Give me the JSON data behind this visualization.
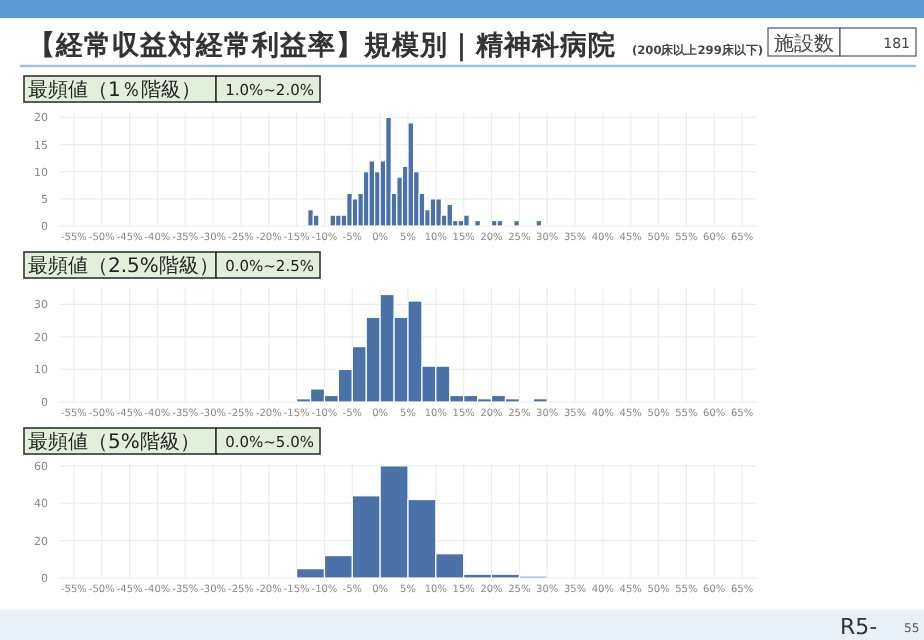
{
  "chart_data": [
    {
      "type": "histogram",
      "title": "【経常収益対経常利益率】規模別｜精神科病院",
      "subtitle": "(200床以上299床以下)",
      "annotations": [
        "施設数",
        "181",
        "最頻値（1％階級）",
        "1.0%~2.0%"
      ],
      "bins": [
        -13,
        -12,
        -11,
        -10,
        -9,
        -8,
        -7,
        -6,
        -5,
        -4,
        -3,
        -2,
        -1,
        0,
        1,
        2,
        3,
        4,
        5,
        6,
        7,
        8,
        9,
        10,
        11,
        12,
        13,
        14,
        15,
        16,
        17,
        18,
        19,
        20,
        21,
        22,
        23,
        24,
        25,
        26,
        27,
        28,
        29
      ],
      "values": [
        3,
        2,
        0,
        0,
        2,
        2,
        2,
        6,
        5,
        6,
        10,
        12,
        10,
        12,
        20,
        6,
        9,
        11,
        19,
        10,
        6,
        3,
        5,
        5,
        2,
        4,
        1,
        1,
        2,
        0,
        1,
        0,
        0,
        1,
        1,
        0,
        0,
        1,
        0,
        0,
        0,
        1
      ],
      "color": "#4a72a8",
      "grid": true,
      "xlim": [
        -57.5,
        67.5
      ],
      "ylim": [
        0,
        21
      ],
      "yticks": [
        0,
        5,
        10,
        15,
        20
      ],
      "xticks": [
        {
          "value": -55,
          "label": "-55%"
        },
        {
          "value": -50,
          "label": "-50%"
        },
        {
          "value": -45,
          "label": "-45%"
        },
        {
          "value": -40,
          "label": "-40%"
        },
        {
          "value": -35,
          "label": "-35%"
        },
        {
          "value": -30,
          "label": "-30%"
        },
        {
          "value": -25,
          "label": "-25%"
        },
        {
          "value": -20,
          "label": "-20%"
        },
        {
          "value": -15,
          "label": "-15%"
        },
        {
          "value": -10,
          "label": "-10%"
        },
        {
          "value": -5,
          "label": "-5%"
        },
        {
          "value": 0,
          "label": "0%"
        },
        {
          "value": 5,
          "label": "5%"
        },
        {
          "value": 10,
          "label": "10%"
        },
        {
          "value": 15,
          "label": "15%"
        },
        {
          "value": 20,
          "label": "20%"
        },
        {
          "value": 25,
          "label": "25%"
        },
        {
          "value": 30,
          "label": "30%"
        },
        {
          "value": 35,
          "label": "35%"
        },
        {
          "value": 40,
          "label": "40%"
        },
        {
          "value": 45,
          "label": "45%"
        },
        {
          "value": 50,
          "label": "50%"
        },
        {
          "value": 55,
          "label": "55%"
        },
        {
          "value": 60,
          "label": "60%"
        },
        {
          "value": 65,
          "label": "65%"
        }
      ]
    },
    {
      "type": "histogram",
      "annotations": [
        "最頻値（2.5%階級）",
        "0.0%~2.5%"
      ],
      "bins": [
        -15,
        -12.5,
        -10,
        -7.5,
        -5,
        -2.5,
        0,
        2.5,
        5,
        7.5,
        10,
        12.5,
        15,
        17.5,
        20,
        22.5,
        25,
        27.5,
        30
      ],
      "values": [
        1,
        4,
        2,
        10,
        17,
        26,
        33,
        26,
        31,
        11,
        11,
        2,
        2,
        1,
        2,
        1,
        0,
        1
      ],
      "color": "#4a72a8",
      "grid": true,
      "xlim": [
        -57.5,
        67.5
      ],
      "ylim": [
        0,
        35
      ],
      "yticks": [
        0,
        10,
        20,
        30
      ],
      "xticks": [
        {
          "value": -55,
          "label": "-55%"
        },
        {
          "value": -50,
          "label": "-50%"
        },
        {
          "value": -45,
          "label": "-45%"
        },
        {
          "value": -40,
          "label": "-40%"
        },
        {
          "value": -35,
          "label": "-35%"
        },
        {
          "value": -30,
          "label": "-30%"
        },
        {
          "value": -25,
          "label": "-25%"
        },
        {
          "value": -20,
          "label": "-20%"
        },
        {
          "value": -15,
          "label": "-15%"
        },
        {
          "value": -10,
          "label": "-10%"
        },
        {
          "value": -5,
          "label": "-5%"
        },
        {
          "value": 0,
          "label": "0%"
        },
        {
          "value": 5,
          "label": "5%"
        },
        {
          "value": 10,
          "label": "10%"
        },
        {
          "value": 15,
          "label": "15%"
        },
        {
          "value": 20,
          "label": "20%"
        },
        {
          "value": 25,
          "label": "25%"
        },
        {
          "value": 30,
          "label": "30%"
        },
        {
          "value": 35,
          "label": "35%"
        },
        {
          "value": 40,
          "label": "40%"
        },
        {
          "value": 45,
          "label": "45%"
        },
        {
          "value": 50,
          "label": "50%"
        },
        {
          "value": 55,
          "label": "55%"
        },
        {
          "value": 60,
          "label": "60%"
        },
        {
          "value": 65,
          "label": "65%"
        }
      ]
    },
    {
      "type": "histogram",
      "annotations": [
        "最頻値（5%階級）",
        "0.0%~5.0%",
        "R5-",
        "55"
      ],
      "bins": [
        -15,
        -10,
        -5,
        0,
        5,
        10,
        15,
        20,
        25,
        30
      ],
      "values": [
        5,
        12,
        44,
        60,
        42,
        13,
        2,
        2,
        1
      ],
      "color": "#4a72a8",
      "grid": true,
      "xlim": [
        -57.5,
        67.5
      ],
      "ylim": [
        0,
        61
      ],
      "yticks": [
        0,
        20,
        40,
        60
      ],
      "xticks": [
        {
          "value": -55,
          "label": "-55%"
        },
        {
          "value": -50,
          "label": "-50%"
        },
        {
          "value": -45,
          "label": "-45%"
        },
        {
          "value": -40,
          "label": "-40%"
        },
        {
          "value": -35,
          "label": "-35%"
        },
        {
          "value": -30,
          "label": "-30%"
        },
        {
          "value": -25,
          "label": "-25%"
        },
        {
          "value": -20,
          "label": "-20%"
        },
        {
          "value": -15,
          "label": "-15%"
        },
        {
          "value": -10,
          "label": "-10%"
        },
        {
          "value": -5,
          "label": "-5%"
        },
        {
          "value": 0,
          "label": "0%"
        },
        {
          "value": 5,
          "label": "5%"
        },
        {
          "value": 10,
          "label": "10%"
        },
        {
          "value": 15,
          "label": "15%"
        },
        {
          "value": 20,
          "label": "20%"
        },
        {
          "value": 25,
          "label": "25%"
        },
        {
          "value": 30,
          "label": "30%"
        },
        {
          "value": 35,
          "label": "35%"
        },
        {
          "value": 40,
          "label": "40%"
        },
        {
          "value": 45,
          "label": "45%"
        },
        {
          "value": 50,
          "label": "50%"
        },
        {
          "value": 55,
          "label": "55%"
        },
        {
          "value": 60,
          "label": "60%"
        },
        {
          "value": 65,
          "label": "65%"
        }
      ]
    }
  ]
}
